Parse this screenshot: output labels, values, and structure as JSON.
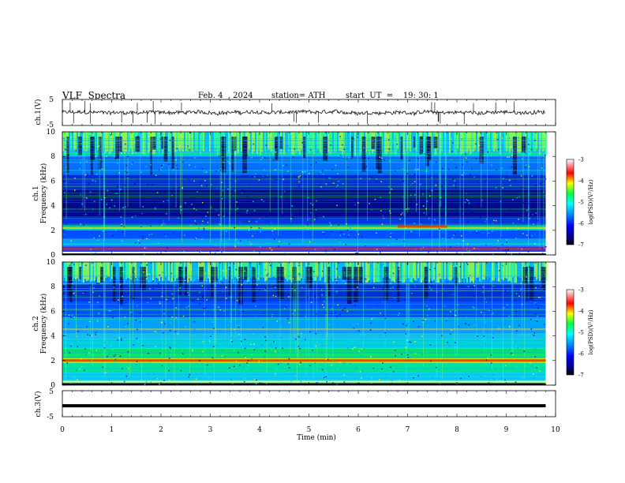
{
  "header": {
    "title": "VLF  Spectra",
    "date": "Feb. 4  , 2024",
    "station": "station= ATH",
    "start": "start  UT  =    19: 30: 1"
  },
  "colors": {
    "waveform": "#111111",
    "ch3_line": "#000000",
    "cmap": [
      "#000000",
      "#00007a",
      "#0000ff",
      "#0090ff",
      "#00ffff",
      "#00ff40",
      "#ffff00",
      "#ff0000",
      "#ffffff"
    ]
  },
  "chart_data": [
    {
      "type": "line",
      "panel": "ch1-waveform",
      "ylabel": "ch.1(V)",
      "ylim": [
        -5,
        5
      ],
      "yticks": [
        "5",
        "-5"
      ],
      "xlim": [
        0,
        10
      ]
    },
    {
      "type": "heatmap",
      "panel": "ch1-spectrogram",
      "ylabel_top": "ch.1",
      "ylabel": "Frequency  (kHz)",
      "ylim": [
        0,
        10
      ],
      "yticks": [
        "0",
        "2",
        "4",
        "6",
        "8",
        "10"
      ],
      "xlim": [
        0,
        10
      ],
      "data_extent_min": 9.8,
      "colorbar": {
        "label": "log(PSD)(V²/Hz)",
        "range": [
          -7,
          -3
        ],
        "ticks": [
          "-3",
          "-4",
          "-5",
          "-6",
          "-7"
        ]
      }
    },
    {
      "type": "heatmap",
      "panel": "ch2-spectrogram",
      "ylabel_top": "ch.2",
      "ylabel": "Frequency  (kHz)",
      "ylim": [
        0,
        10
      ],
      "yticks": [
        "0",
        "2",
        "4",
        "6",
        "8",
        "10"
      ],
      "xlim": [
        0,
        10
      ],
      "data_extent_min": 9.8,
      "colorbar": {
        "label": "log(PSD)(V²/Hz)",
        "range": [
          -7,
          -3
        ],
        "ticks": [
          "-3",
          "-4",
          "-5",
          "-6",
          "-7"
        ]
      }
    },
    {
      "type": "line",
      "panel": "ch3-waveform",
      "ylabel": "ch.3(V)",
      "ylim": [
        -5,
        5
      ],
      "yticks": [
        "5",
        "-5"
      ],
      "xlim": [
        0,
        10
      ],
      "xlabel": "Time  (min)",
      "xticks": [
        "0",
        "1",
        "2",
        "3",
        "4",
        "5",
        "6",
        "7",
        "8",
        "9",
        "10"
      ],
      "series": [
        {
          "x": [
            0,
            9.8
          ],
          "y": [
            -0.8,
            -0.8
          ]
        }
      ]
    }
  ]
}
